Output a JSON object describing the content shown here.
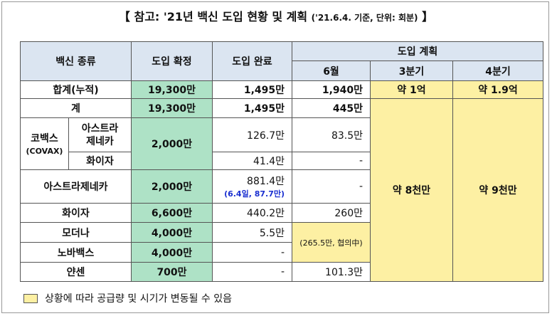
{
  "header": {
    "open": "【",
    "title": "참고: '21년 백신 도입 현황 및 계획",
    "note": "('21.6.4. 기준, 단위: 회분)",
    "close": "】"
  },
  "table": {
    "columns": {
      "vaccine": "백신 종류",
      "confirmed": "도입 확정",
      "completed": "도입 완료",
      "plan": "도입 계획",
      "june": "6월",
      "q3": "3분기",
      "q4": "4분기"
    },
    "total": {
      "label": "합계(누적)",
      "confirmed": "19,300만",
      "completed": "1,495만",
      "june": "1,940만",
      "q3": "약 1억",
      "q4": "약 1.9억"
    },
    "subtotal": {
      "label": "계",
      "confirmed": "19,300만",
      "completed": "1,495만",
      "june": "445만",
      "q3": "약 8천만",
      "q4": "약 9천만"
    },
    "covax": {
      "label": "코백스",
      "sublabel": "(COVAX)",
      "confirmed": "2,000만",
      "rows": [
        {
          "name": "아스트라\n제네카",
          "completed": "126.7만",
          "june": "83.5만"
        },
        {
          "name": "화이자",
          "completed": "41.4만",
          "june": "-"
        }
      ]
    },
    "rows": [
      {
        "name": "아스트라제네카",
        "confirmed": "2,000만",
        "completed": "881.4만",
        "completed_note": "(6.4일, 87.7만)",
        "june": "-"
      },
      {
        "name": "화이자",
        "confirmed": "6,600만",
        "completed": "440.2만",
        "june": "260만"
      },
      {
        "name": "모더나",
        "confirmed": "4,000만",
        "completed": "5.5만"
      },
      {
        "name": "노바백스",
        "confirmed": "4,000만",
        "completed": "-"
      },
      {
        "name": "얀센",
        "confirmed": "700만",
        "completed": "-",
        "june": "101.3만"
      }
    ],
    "moderna_novavax_june": "(265.5만, 협의中)"
  },
  "legend": "상황에 따라 공급량 및 시기가 변동될 수 있음"
}
